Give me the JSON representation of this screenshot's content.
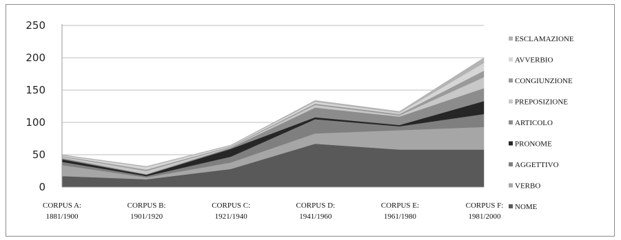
{
  "chart_data": {
    "type": "area",
    "stacked": true,
    "categories": [
      [
        "CORPUS A:",
        "1881/1900"
      ],
      [
        "CORPUS B:",
        "1901/1920"
      ],
      [
        "CORPUS C:",
        "1921/1940"
      ],
      [
        "CORPUS D:",
        "1941/1960"
      ],
      [
        "CORPUS E:",
        "1961/1980"
      ],
      [
        "CORPUS F:",
        "1981/2000"
      ]
    ],
    "ylim": [
      0,
      250
    ],
    "yticks": [
      0,
      50,
      100,
      150,
      200,
      250
    ],
    "grid": true,
    "legend_position": "right",
    "series": [
      {
        "name": "NOME",
        "color": "#595959",
        "values": [
          17,
          12,
          28,
          67,
          58,
          58
        ]
      },
      {
        "name": "VERBO",
        "color": "#a6a6a6",
        "values": [
          17,
          3,
          10,
          16,
          30,
          35
        ]
      },
      {
        "name": "AGGETTIVO",
        "color": "#7f7f7f",
        "values": [
          5,
          2,
          9,
          22,
          6,
          20
        ]
      },
      {
        "name": "PRONOME",
        "color": "#262626",
        "values": [
          4,
          2,
          12,
          3,
          2,
          20
        ]
      },
      {
        "name": "ARTICOLO",
        "color": "#8c8c8c",
        "values": [
          2,
          1,
          2,
          15,
          13,
          20
        ]
      },
      {
        "name": "PREPOSIZIONE",
        "color": "#c8c8c8",
        "values": [
          2,
          5,
          1,
          4,
          2,
          17
        ]
      },
      {
        "name": "CONGIUNZIONE",
        "color": "#9a9a9a",
        "values": [
          1,
          2,
          1,
          2,
          2,
          10
        ]
      },
      {
        "name": "AVVERBIO",
        "color": "#d6d6d6",
        "values": [
          1,
          4,
          1,
          3,
          2,
          12
        ]
      },
      {
        "name": "ESCLAMAZIONE",
        "color": "#b4b4b4",
        "values": [
          1,
          1,
          1,
          2,
          2,
          8
        ]
      }
    ]
  }
}
